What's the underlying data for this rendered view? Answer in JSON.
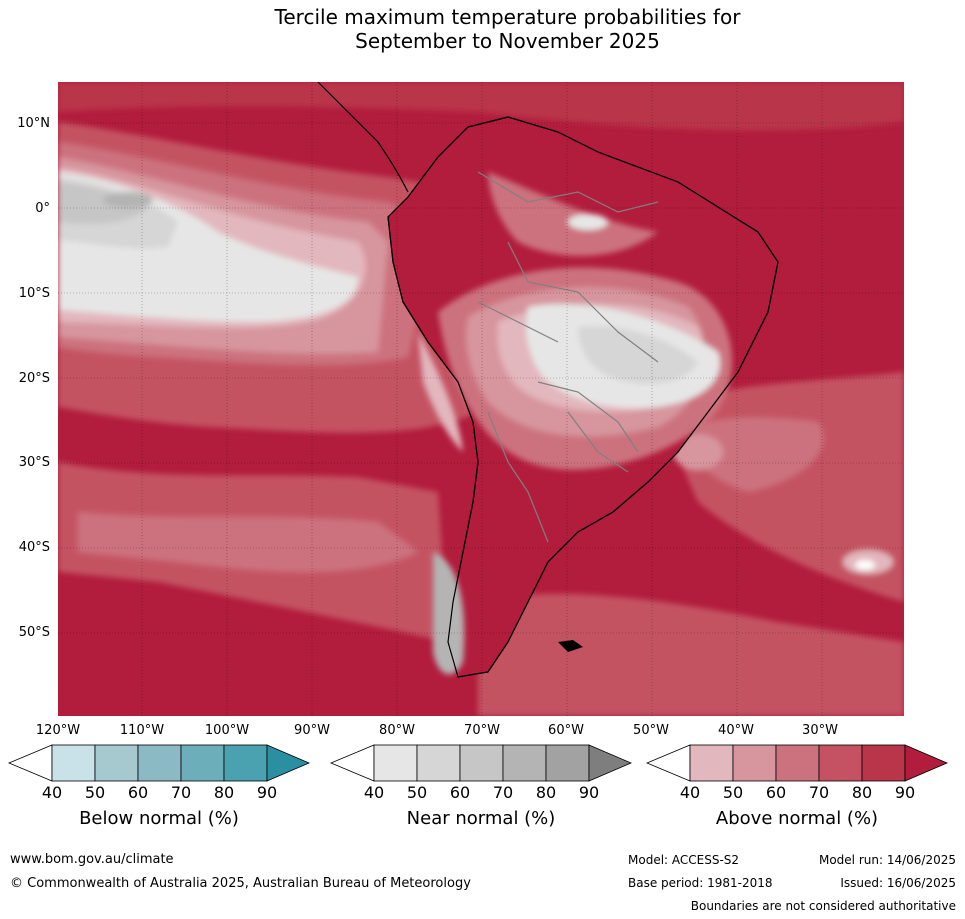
{
  "title_line1": "Tercile maximum temperature probabilities for",
  "title_line2": "September to November 2025",
  "lat_labels": [
    "10°N",
    "0°",
    "10°S",
    "20°S",
    "30°S",
    "40°S",
    "50°S"
  ],
  "lon_labels": [
    "120°W",
    "110°W",
    "100°W",
    "90°W",
    "80°W",
    "70°W",
    "60°W",
    "50°W",
    "40°W",
    "30°W"
  ],
  "colorbars": {
    "below": {
      "title": "Below normal (%)",
      "ticks": [
        "40",
        "50",
        "60",
        "70",
        "80",
        "90"
      ],
      "colors": [
        "#ffffff",
        "#c9e2e8",
        "#a6c8cf",
        "#8bb9c4",
        "#6daebb",
        "#4aa2b1",
        "#2a8fa1"
      ]
    },
    "near": {
      "title": "Near normal (%)",
      "ticks": [
        "40",
        "50",
        "60",
        "70",
        "80",
        "90"
      ],
      "colors": [
        "#ffffff",
        "#e6e6e6",
        "#d6d6d6",
        "#c6c6c6",
        "#b4b4b4",
        "#a2a2a2",
        "#7e7e7e"
      ]
    },
    "above": {
      "title": "Above normal (%)",
      "ticks": [
        "40",
        "50",
        "60",
        "70",
        "80",
        "90"
      ],
      "colors": [
        "#ffffff",
        "#e2b7bd",
        "#d7959e",
        "#cc727e",
        "#c45262",
        "#b9354a",
        "#b21c3d"
      ]
    }
  },
  "footer": {
    "website": "www.bom.gov.au/climate",
    "copyright": "© Commonwealth of Australia 2025, Australian Bureau of Meteorology",
    "model": "Model: ACCESS-S2",
    "base_period": "Base period: 1981-2018",
    "model_run": "Model run: 14/06/2025",
    "issued": "Issued: 16/06/2025",
    "disclaimer": "Boundaries are not considered authoritative"
  }
}
